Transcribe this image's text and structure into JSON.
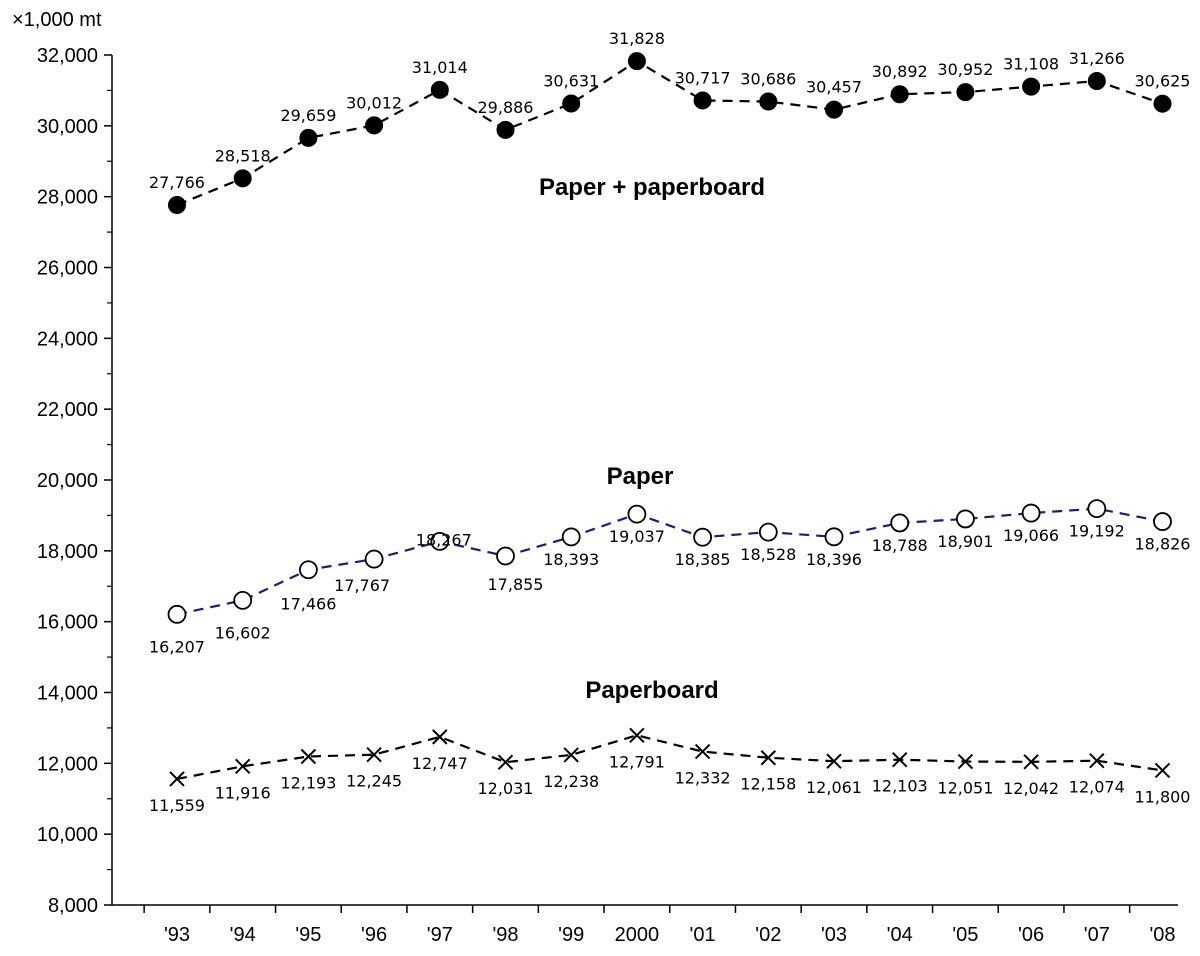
{
  "chart_data": {
    "type": "line",
    "unit_label": "×1,000 mt",
    "categories": [
      "'93",
      "'94",
      "'95",
      "'96",
      "'97",
      "'98",
      "'99",
      "2000",
      "'01",
      "'02",
      "'03",
      "'04",
      "'05",
      "'06",
      "'07",
      "'08"
    ],
    "ylim": [
      8000,
      32000
    ],
    "yticks": [
      8000,
      10000,
      12000,
      14000,
      16000,
      18000,
      20000,
      22000,
      24000,
      26000,
      28000,
      30000,
      32000
    ],
    "ytick_labels": [
      "8,000",
      "10,000",
      "12,000",
      "14,000",
      "16,000",
      "18,000",
      "20,000",
      "22,000",
      "24,000",
      "26,000",
      "28,000",
      "30,000",
      "32,000"
    ],
    "grid": false,
    "series": [
      {
        "name": "Paper + paperboard",
        "marker": "filled-circle",
        "color": "#000000",
        "values": [
          27766,
          28518,
          29659,
          30012,
          31014,
          29886,
          30631,
          31828,
          30717,
          30686,
          30457,
          30892,
          30952,
          31108,
          31266,
          30625
        ],
        "labels": [
          "27,766",
          "28,518",
          "29,659",
          "30,012",
          "31,014",
          "29,886",
          "30,631",
          "31,828",
          "30,717",
          "30,686",
          "30,457",
          "30,892",
          "30,952",
          "31,108",
          "31,266",
          "30,625"
        ]
      },
      {
        "name": "Paper",
        "marker": "open-circle",
        "color": "#1f1f6e",
        "values": [
          16207,
          16602,
          17466,
          17767,
          18267,
          17855,
          18393,
          19037,
          18385,
          18528,
          18396,
          18788,
          18901,
          19066,
          19192,
          18826
        ],
        "labels": [
          "16,207",
          "16,602",
          "17,466",
          "17,767",
          "18,267",
          "17,855",
          "18,393",
          "19,037",
          "18,385",
          "18,528",
          "18,396",
          "18,788",
          "18,901",
          "19,066",
          "19,192",
          "18,826"
        ]
      },
      {
        "name": "Paperboard",
        "marker": "x",
        "color": "#000000",
        "values": [
          11559,
          11916,
          12193,
          12245,
          12747,
          12031,
          12238,
          12791,
          12332,
          12158,
          12061,
          12103,
          12051,
          12042,
          12074,
          11800
        ],
        "labels": [
          "11,559",
          "11,916",
          "12,193",
          "12,245",
          "12,747",
          "12,031",
          "12,238",
          "12,791",
          "12,332",
          "12,158",
          "12,061",
          "12,103",
          "12,051",
          "12,042",
          "12,074",
          "11,800"
        ]
      }
    ]
  }
}
